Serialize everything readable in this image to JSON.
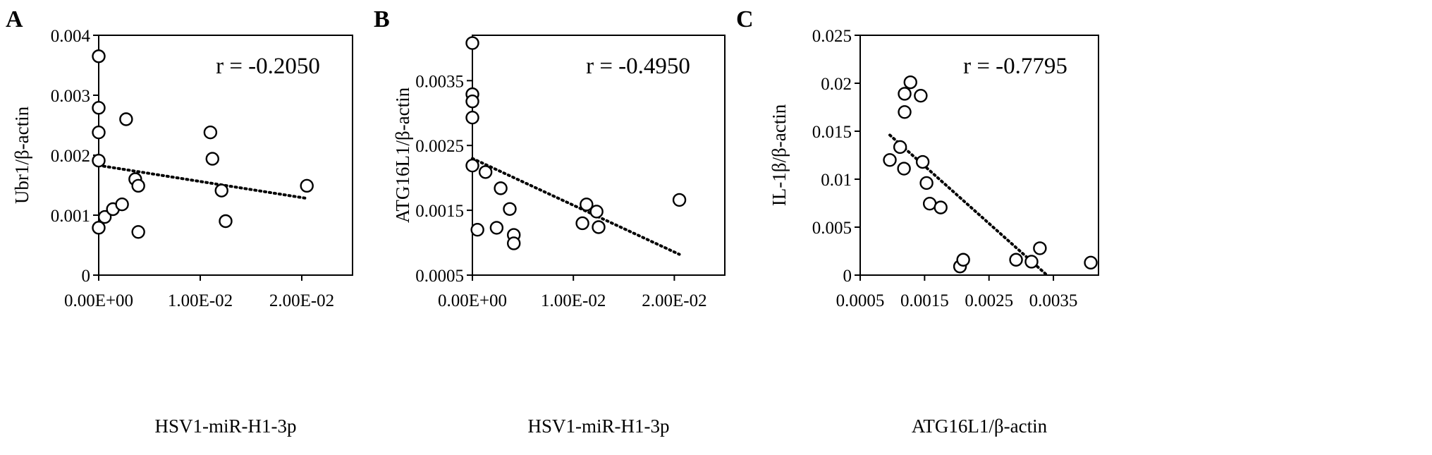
{
  "chart_data": [
    {
      "type": "scatter",
      "panel_label": "A",
      "xlabel": "HSV1-miR-H1-3p",
      "ylabel": "Ubr1/β-actin",
      "annotation": "r = -0.2050",
      "xlim": [
        0,
        0.025
      ],
      "ylim": [
        0,
        0.004
      ],
      "x_ticks": [
        0,
        0.01,
        0.02
      ],
      "x_tick_labels": [
        "0.00E+00",
        "1.00E-02",
        "2.00E-02"
      ],
      "y_ticks": [
        0,
        0.001,
        0.002,
        0.003,
        0.004
      ],
      "y_tick_labels": [
        "0",
        "0.001",
        "0.002",
        "0.003",
        "0.004"
      ],
      "points": [
        {
          "x": 0.0,
          "y": 0.00365
        },
        {
          "x": 0.0,
          "y": 0.00279
        },
        {
          "x": 0.0,
          "y": 0.00238
        },
        {
          "x": 0.0,
          "y": 0.00191
        },
        {
          "x": 0.0,
          "y": 0.00079
        },
        {
          "x": 0.0006,
          "y": 0.00097
        },
        {
          "x": 0.0014,
          "y": 0.0011
        },
        {
          "x": 0.0023,
          "y": 0.00118
        },
        {
          "x": 0.0027,
          "y": 0.0026
        },
        {
          "x": 0.0036,
          "y": 0.0016
        },
        {
          "x": 0.0039,
          "y": 0.00149
        },
        {
          "x": 0.0039,
          "y": 0.00072
        },
        {
          "x": 0.011,
          "y": 0.00238
        },
        {
          "x": 0.0112,
          "y": 0.00194
        },
        {
          "x": 0.0121,
          "y": 0.00141
        },
        {
          "x": 0.0125,
          "y": 0.0009
        },
        {
          "x": 0.0205,
          "y": 0.00149
        }
      ],
      "trendline": {
        "x": [
          0.0,
          0.0205
        ],
        "y": [
          0.00183,
          0.00128
        ]
      }
    },
    {
      "type": "scatter",
      "panel_label": "B",
      "xlabel": "HSV1-miR-H1-3p",
      "ylabel": "ATG16L1/β-actin",
      "annotation": "r = -0.4950",
      "xlim": [
        0,
        0.025
      ],
      "ylim": [
        0.0005,
        0.0042
      ],
      "x_ticks": [
        0,
        0.01,
        0.02
      ],
      "x_tick_labels": [
        "0.00E+00",
        "1.00E-02",
        "2.00E-02"
      ],
      "y_ticks": [
        0.0005,
        0.0015,
        0.0025,
        0.0035
      ],
      "y_tick_labels": [
        "0.0005",
        "0.0015",
        "0.0025",
        "0.0035"
      ],
      "points": [
        {
          "x": 0.0,
          "y": 0.00408
        },
        {
          "x": 0.0,
          "y": 0.00329
        },
        {
          "x": 0.0,
          "y": 0.00318
        },
        {
          "x": 0.0,
          "y": 0.00293
        },
        {
          "x": 0.0,
          "y": 0.00219
        },
        {
          "x": 0.0005,
          "y": 0.0012
        },
        {
          "x": 0.0013,
          "y": 0.00209
        },
        {
          "x": 0.0024,
          "y": 0.00123
        },
        {
          "x": 0.0028,
          "y": 0.00184
        },
        {
          "x": 0.0037,
          "y": 0.00152
        },
        {
          "x": 0.0041,
          "y": 0.00112
        },
        {
          "x": 0.0041,
          "y": 0.00099
        },
        {
          "x": 0.0109,
          "y": 0.0013
        },
        {
          "x": 0.0113,
          "y": 0.00159
        },
        {
          "x": 0.0123,
          "y": 0.00148
        },
        {
          "x": 0.0125,
          "y": 0.00124
        },
        {
          "x": 0.0205,
          "y": 0.00166
        }
      ],
      "trendline": {
        "x": [
          0.0,
          0.0205
        ],
        "y": [
          0.0023,
          0.00082
        ]
      }
    },
    {
      "type": "scatter",
      "panel_label": "C",
      "xlabel": "ATG16L1/β-actin",
      "ylabel": "IL-1β/β-actin",
      "annotation": "r = -0.7795",
      "xlim": [
        0.0005,
        0.0042
      ],
      "ylim": [
        0,
        0.025
      ],
      "x_ticks": [
        0.0005,
        0.0015,
        0.0025,
        0.0035
      ],
      "x_tick_labels": [
        "0.0005",
        "0.0015",
        "0.0025",
        "0.0035"
      ],
      "y_ticks": [
        0,
        0.005,
        0.01,
        0.015,
        0.02,
        0.025
      ],
      "y_tick_labels": [
        "0",
        "0.005",
        "0.01",
        "0.015",
        "0.02",
        "0.025"
      ],
      "points": [
        {
          "x": 0.00096,
          "y": 0.012
        },
        {
          "x": 0.00112,
          "y": 0.01335
        },
        {
          "x": 0.00118,
          "y": 0.0111
        },
        {
          "x": 0.00119,
          "y": 0.017
        },
        {
          "x": 0.00119,
          "y": 0.0189
        },
        {
          "x": 0.00128,
          "y": 0.0201
        },
        {
          "x": 0.00144,
          "y": 0.0187
        },
        {
          "x": 0.00147,
          "y": 0.0118
        },
        {
          "x": 0.00153,
          "y": 0.0096
        },
        {
          "x": 0.00158,
          "y": 0.00745
        },
        {
          "x": 0.00175,
          "y": 0.00705
        },
        {
          "x": 0.00205,
          "y": 0.0009
        },
        {
          "x": 0.0021,
          "y": 0.0016
        },
        {
          "x": 0.00292,
          "y": 0.0016
        },
        {
          "x": 0.00316,
          "y": 0.0014
        },
        {
          "x": 0.00329,
          "y": 0.0028
        },
        {
          "x": 0.00408,
          "y": 0.0013
        }
      ],
      "trendline": {
        "x": [
          0.00096,
          0.0034
        ],
        "y": [
          0.0146,
          0.0
        ]
      }
    }
  ]
}
